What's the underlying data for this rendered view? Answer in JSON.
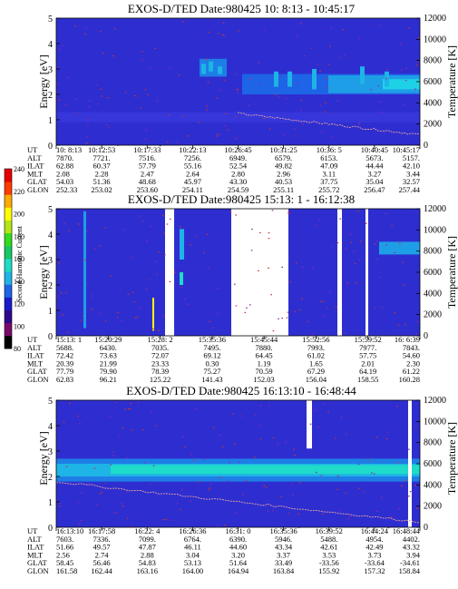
{
  "chart_data": {
    "type": "heatmap",
    "colorbar": {
      "label": "Second Harmonic Current",
      "ticks": [
        "80",
        "100",
        "120",
        "140",
        "160",
        "180",
        "200",
        "220",
        "240"
      ],
      "colors": [
        "#000000",
        "#7a0a6a",
        "#2d0a8c",
        "#1a1acc",
        "#1e64e6",
        "#1eb4e6",
        "#1edcc8",
        "#14c864",
        "#32dc1e",
        "#b4e614",
        "#ffff00",
        "#ffaa00",
        "#ff3c00",
        "#e60000"
      ]
    },
    "panels": [
      {
        "title": "EXOS-D/TED    Date:980425  10: 8:13 - 10:45:17",
        "ylabel": "Energy [eV]",
        "y2label": "Temperature [K]",
        "ylim": [
          0,
          5
        ],
        "y2lim": [
          0,
          12000
        ],
        "yticks": [
          "0",
          "1",
          "2",
          "3",
          "4",
          "5"
        ],
        "y2ticks": [
          "0",
          "2000",
          "4000",
          "6000",
          "8000",
          "10000",
          "12000"
        ],
        "table": {
          "labels": [
            "UT",
            "ALT",
            "ILAT",
            "MLT",
            "GLAT",
            "GLON"
          ],
          "columns": [
            [
              "10: 8:13",
              "7870.",
              "62.88",
              "2.08",
              "54.03",
              "252.33"
            ],
            [
              "10:12:53",
              "7721.",
              "60.37",
              "2.28",
              "51.36",
              "253.02"
            ],
            [
              "10:17:33",
              "7516.",
              "57.79",
              "2.47",
              "48.68",
              "253.60"
            ],
            [
              "10:22:13",
              "7256.",
              "55.16",
              "2.64",
              "45.97",
              "254.11"
            ],
            [
              "10:26:45",
              "6949.",
              "52.54",
              "2.80",
              "43.30",
              "254.59"
            ],
            [
              "10:31:25",
              "6579.",
              "49.82",
              "2.96",
              "40.53",
              "255.11"
            ],
            [
              "10:36: 5",
              "6153.",
              "47.09",
              "3.11",
              "37.75",
              "255.72"
            ],
            [
              "10:40:45",
              "5673.",
              "44.44",
              "3.27",
              "35.04",
              "256.47"
            ],
            [
              "10:45:17",
              "5157.",
              "42.10",
              "3.44",
              "32.57",
              "257.44"
            ]
          ]
        }
      },
      {
        "title": "EXOS-D/TED    Date:980425  15:13: 1 - 16:12:38",
        "ylabel": "Energy [eV]",
        "y2label": "Temperature [K]",
        "ylim": [
          0,
          5
        ],
        "y2lim": [
          0,
          12000
        ],
        "yticks": [
          "0",
          "1",
          "2",
          "3",
          "4",
          "5"
        ],
        "y2ticks": [
          "0",
          "2000",
          "4000",
          "6000",
          "8000",
          "10000",
          "12000"
        ],
        "table": {
          "labels": [
            "UT",
            "ALT",
            "ILAT",
            "MLT",
            "GLAT",
            "GLON"
          ],
          "columns": [
            [
              "15:13: 1",
              "5688.",
              "72.42",
              "20.39",
              "77.79",
              "62.83"
            ],
            [
              "15:20:29",
              "6430.",
              "73.63",
              "21.99",
              "79.90",
              "96.21"
            ],
            [
              "15:28: 2",
              "7035.",
              "72.07",
              "23.33",
              "78.39",
              "125.22"
            ],
            [
              "15:35:36",
              "7495.",
              "69.12",
              "0.30",
              "75.27",
              "141.43"
            ],
            [
              "15:45:44",
              "7880.",
              "64.45",
              "1.19",
              "70.59",
              "152.03"
            ],
            [
              "15:52:56",
              "7993.",
              "61.02",
              "1.65",
              "67.29",
              "156.04"
            ],
            [
              "15:59:52",
              "7977.",
              "57.75",
              "2.01",
              "64.19",
              "158.55"
            ],
            [
              "16: 6:39",
              "7843.",
              "54.60",
              "2.30",
              "61.22",
              "160.28"
            ]
          ]
        }
      },
      {
        "title": "EXOS-D/TED    Date:980425  16:13:10 - 16:48:44",
        "ylabel": "Energy [eV]",
        "y2label": "Temperature [K]",
        "ylim": [
          0,
          5
        ],
        "y2lim": [
          0,
          12000
        ],
        "yticks": [
          "0",
          "1",
          "2",
          "3",
          "4",
          "5"
        ],
        "y2ticks": [
          "0",
          "2000",
          "4000",
          "6000",
          "8000",
          "10000",
          "12000"
        ],
        "table": {
          "labels": [
            "UT",
            "ALT",
            "ILAT",
            "MLT",
            "GLAT",
            "GLON"
          ],
          "columns": [
            [
              "16:13:10",
              "7603.",
              "51.66",
              "2.56",
              "58.45",
              "161.58"
            ],
            [
              "16:17:58",
              "7336.",
              "49.57",
              "2.74",
              "56.46",
              "162.44"
            ],
            [
              "16:22: 4",
              "7099.",
              "47.87",
              "2.88",
              "54.83",
              "163.16"
            ],
            [
              "16:26:36",
              "6764.",
              "46.11",
              "3.04",
              "53.13",
              "164.00"
            ],
            [
              "16:31: 0",
              "6390.",
              "44.60",
              "3.20",
              "51.64",
              "164.94"
            ],
            [
              "16:35:36",
              "5946.",
              "43.34",
              "3.37",
              "33.49",
              "163.84"
            ],
            [
              "16:39:52",
              "5488.",
              "42.61",
              "3.53",
              "-33.56",
              "155.92"
            ],
            [
              "16:44:24",
              "4954.",
              "42.49",
              "3.73",
              "-33.64",
              "157.32"
            ],
            [
              "16:48:44",
              "4402.",
              "43.32",
              "3.94",
              "-34.61",
              "158.84"
            ]
          ]
        }
      }
    ]
  }
}
